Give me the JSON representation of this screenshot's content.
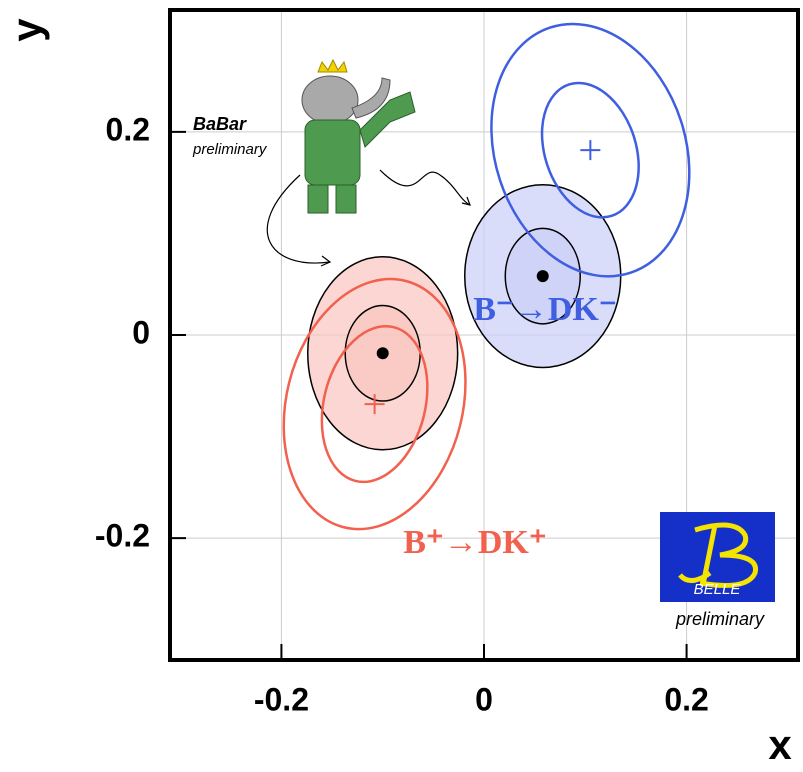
{
  "chart_data": {
    "type": "scatter",
    "xlabel": "x",
    "ylabel": "y",
    "xlim": [
      -0.31,
      0.31
    ],
    "ylim": [
      -0.32,
      0.32
    ],
    "xticks": [
      -0.2,
      0,
      0.2
    ],
    "yticks": [
      -0.2,
      0,
      0.2
    ],
    "grid": true,
    "series": [
      {
        "name": "BaBar",
        "subtitle": "preliminary",
        "color": "#000000",
        "fill_colors": [
          "#c9cff6",
          "#f9c4bf"
        ],
        "x": [
          0.058,
          -0.1
        ],
        "y": [
          0.058,
          -0.018
        ],
        "contours": [
          [
            {
              "rx": 0.077,
              "ry": 0.09,
              "angle": 0
            },
            {
              "rx": 0.037,
              "ry": 0.047,
              "angle": 0
            }
          ],
          [
            {
              "rx": 0.074,
              "ry": 0.095,
              "angle": 0
            },
            {
              "rx": 0.037,
              "ry": 0.047,
              "angle": 0
            }
          ]
        ]
      },
      {
        "name": "BELLE",
        "subtitle": "preliminary",
        "colors": [
          "#3f5fe0",
          "#f2604e"
        ],
        "x": [
          0.105,
          -0.108
        ],
        "y": [
          0.182,
          -0.068
        ],
        "contours": [
          [
            {
              "rx": 0.094,
              "ry": 0.127,
              "angle": -18
            },
            {
              "rx": 0.045,
              "ry": 0.068,
              "angle": -18
            }
          ],
          [
            {
              "rx": 0.087,
              "ry": 0.125,
              "angle": 14
            },
            {
              "rx": 0.05,
              "ry": 0.078,
              "angle": 14
            }
          ]
        ]
      }
    ],
    "annotations": [
      {
        "text": "B⁻→DK⁻",
        "color": "#3f5fe0"
      },
      {
        "text": "B⁺→DK⁺",
        "color": "#f2604e"
      }
    ]
  }
}
